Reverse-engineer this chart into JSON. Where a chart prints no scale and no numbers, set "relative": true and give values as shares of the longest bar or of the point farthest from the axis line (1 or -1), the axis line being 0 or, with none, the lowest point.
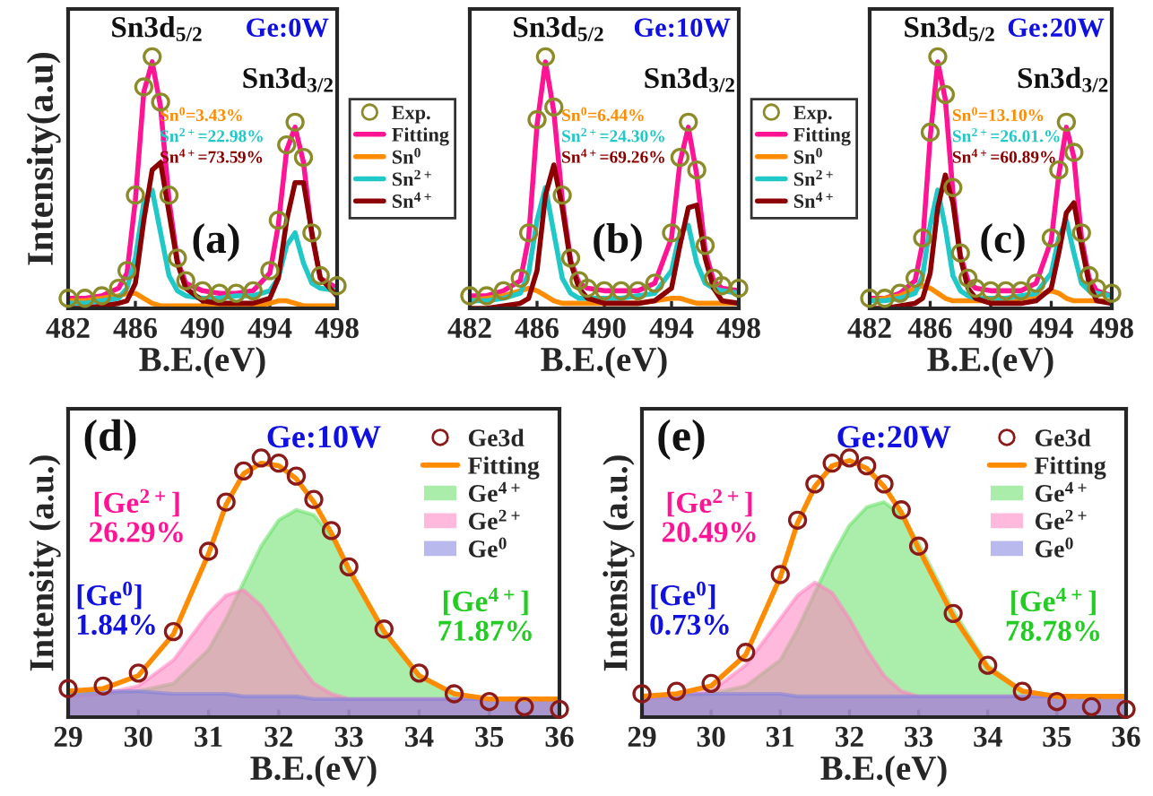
{
  "chart_data": [
    {
      "type": "line",
      "relative": true,
      "xlabel": "B.E.(eV)",
      "ylabel": "Intensity(a.u)",
      "xlim": [
        482,
        498
      ],
      "xticks": [
        482,
        486,
        490,
        494,
        498
      ],
      "legend": "right",
      "annotations": [
        "Sn3d$_{5/2}$",
        "Sn3d$_{3/2}$",
        "Ge:0W",
        "Sn$^{0}$=3.43%",
        "Sn$^{2+}$=22.98%",
        "Sn$^{4+}$=73.59%",
        "(a)"
      ],
      "x": [
        482,
        483,
        484,
        485,
        485.5,
        486,
        486.5,
        487,
        487.5,
        488,
        488.5,
        489,
        490,
        491,
        492,
        493,
        494,
        494.5,
        495,
        495.5,
        496,
        496.5,
        497,
        498
      ],
      "series": [
        {
          "name": "Exp.",
          "type": "scatter",
          "marker": "circle",
          "color": "#8b8b2a",
          "values": [
            0.04,
            0.04,
            0.05,
            0.08,
            0.15,
            0.45,
            0.88,
            1.0,
            0.82,
            0.45,
            0.2,
            0.11,
            0.07,
            0.06,
            0.06,
            0.07,
            0.15,
            0.35,
            0.65,
            0.74,
            0.6,
            0.3,
            0.13,
            0.09
          ]
        },
        {
          "name": "Fitting",
          "color": "#ff1493",
          "values": [
            0.04,
            0.04,
            0.05,
            0.08,
            0.14,
            0.43,
            0.86,
            0.98,
            0.8,
            0.43,
            0.19,
            0.1,
            0.07,
            0.06,
            0.06,
            0.07,
            0.14,
            0.33,
            0.63,
            0.72,
            0.58,
            0.29,
            0.12,
            0.08
          ]
        },
        {
          "name": "Sn$^{0}$",
          "color": "#ff8c00",
          "values": [
            0.03,
            0.03,
            0.04,
            0.05,
            0.06,
            0.06,
            0.04,
            0.02,
            0.01,
            0.01,
            0.01,
            0.01,
            0.01,
            0.01,
            0.01,
            0.01,
            0.02,
            0.03,
            0.03,
            0.02,
            0.01,
            0.01,
            0.01,
            0.01
          ]
        },
        {
          "name": "Sn$^{2+}$",
          "color": "#20c8c8",
          "values": [
            0.02,
            0.02,
            0.03,
            0.04,
            0.08,
            0.2,
            0.42,
            0.47,
            0.3,
            0.13,
            0.07,
            0.05,
            0.04,
            0.04,
            0.05,
            0.05,
            0.07,
            0.12,
            0.25,
            0.3,
            0.18,
            0.1,
            0.08,
            0.07
          ]
        },
        {
          "name": "Sn$^{4+}$",
          "color": "#8b0000",
          "values": [
            0.0,
            0.0,
            0.01,
            0.02,
            0.03,
            0.1,
            0.35,
            0.55,
            0.58,
            0.38,
            0.18,
            0.08,
            0.03,
            0.02,
            0.02,
            0.02,
            0.04,
            0.12,
            0.35,
            0.5,
            0.5,
            0.3,
            0.12,
            0.05
          ]
        }
      ]
    },
    {
      "type": "line",
      "relative": true,
      "xlabel": "B.E.(eV)",
      "xlim": [
        482,
        498
      ],
      "xticks": [
        482,
        486,
        490,
        494,
        498
      ],
      "legend": "right",
      "annotations": [
        "Sn3d$_{5/2}$",
        "Sn3d$_{3/2}$",
        "Ge:10W",
        "Sn$^{0}$=6.44%",
        "Sn$^{2+}$=24.30%",
        "Sn$^{4+}$=69.26%",
        "(b)"
      ],
      "x": [
        482,
        483,
        484,
        485,
        485.5,
        486,
        486.5,
        487,
        487.5,
        488,
        488.5,
        489,
        490,
        491,
        492,
        493,
        494,
        494.5,
        495,
        495.5,
        496,
        496.5,
        497,
        498
      ],
      "series": [
        {
          "name": "Exp.",
          "type": "scatter",
          "marker": "circle",
          "color": "#8b8b2a",
          "values": [
            0.05,
            0.05,
            0.07,
            0.12,
            0.3,
            0.75,
            1.0,
            0.8,
            0.45,
            0.2,
            0.11,
            0.08,
            0.07,
            0.07,
            0.07,
            0.1,
            0.3,
            0.6,
            0.74,
            0.55,
            0.25,
            0.12,
            0.09,
            0.08
          ]
        },
        {
          "name": "Fitting",
          "color": "#ff1493",
          "values": [
            0.05,
            0.05,
            0.07,
            0.11,
            0.28,
            0.73,
            0.98,
            0.78,
            0.43,
            0.19,
            0.1,
            0.08,
            0.07,
            0.07,
            0.07,
            0.1,
            0.28,
            0.58,
            0.72,
            0.53,
            0.23,
            0.11,
            0.08,
            0.07
          ]
        },
        {
          "name": "Sn$^{0}$",
          "color": "#ff8c00",
          "values": [
            0.03,
            0.04,
            0.05,
            0.07,
            0.08,
            0.07,
            0.05,
            0.03,
            0.02,
            0.02,
            0.02,
            0.02,
            0.02,
            0.02,
            0.02,
            0.03,
            0.04,
            0.04,
            0.03,
            0.02,
            0.02,
            0.02,
            0.02,
            0.02
          ]
        },
        {
          "name": "Sn$^{2+}$",
          "color": "#20c8c8",
          "values": [
            0.03,
            0.03,
            0.04,
            0.06,
            0.14,
            0.35,
            0.48,
            0.3,
            0.12,
            0.06,
            0.04,
            0.04,
            0.04,
            0.04,
            0.05,
            0.06,
            0.15,
            0.3,
            0.33,
            0.18,
            0.1,
            0.08,
            0.07,
            0.06
          ]
        },
        {
          "name": "Sn$^{4+}$",
          "color": "#8b0000",
          "values": [
            0.0,
            0.0,
            0.01,
            0.02,
            0.04,
            0.15,
            0.45,
            0.57,
            0.4,
            0.18,
            0.08,
            0.04,
            0.02,
            0.02,
            0.02,
            0.03,
            0.08,
            0.25,
            0.4,
            0.41,
            0.2,
            0.08,
            0.03,
            0.02
          ]
        }
      ]
    },
    {
      "type": "line",
      "relative": true,
      "xlabel": "B.E.(eV)",
      "xlim": [
        482,
        498
      ],
      "xticks": [
        482,
        486,
        490,
        494,
        498
      ],
      "annotations": [
        "Sn3d$_{5/2}$",
        "Sn3d$_{3/2}$",
        "Ge:20W",
        "Sn$^{0}$=13.10%",
        "Sn$^{2+}$=26.01.%",
        "Sn$^{4+}$=60.89%",
        "(c)"
      ],
      "x": [
        482,
        483,
        484,
        485,
        485.5,
        486,
        486.5,
        487,
        487.5,
        488,
        488.5,
        489,
        490,
        491,
        492,
        493,
        494,
        494.5,
        495,
        495.5,
        496,
        496.5,
        497,
        498
      ],
      "series": [
        {
          "type": "scatter",
          "marker": "circle",
          "color": "#8b8b2a",
          "values": [
            0.04,
            0.04,
            0.06,
            0.12,
            0.28,
            0.7,
            1.0,
            0.85,
            0.48,
            0.22,
            0.12,
            0.08,
            0.07,
            0.07,
            0.07,
            0.1,
            0.28,
            0.55,
            0.74,
            0.62,
            0.3,
            0.13,
            0.08,
            0.06
          ]
        },
        {
          "color": "#ff1493",
          "values": [
            0.04,
            0.04,
            0.06,
            0.11,
            0.26,
            0.68,
            0.98,
            0.83,
            0.46,
            0.21,
            0.11,
            0.08,
            0.07,
            0.07,
            0.07,
            0.1,
            0.27,
            0.53,
            0.72,
            0.6,
            0.28,
            0.12,
            0.07,
            0.05
          ]
        },
        {
          "color": "#ff8c00",
          "values": [
            0.03,
            0.04,
            0.05,
            0.08,
            0.09,
            0.08,
            0.06,
            0.04,
            0.03,
            0.03,
            0.03,
            0.03,
            0.03,
            0.03,
            0.04,
            0.05,
            0.07,
            0.06,
            0.04,
            0.03,
            0.03,
            0.03,
            0.03,
            0.03
          ]
        },
        {
          "color": "#20c8c8",
          "values": [
            0.03,
            0.03,
            0.04,
            0.06,
            0.13,
            0.33,
            0.47,
            0.32,
            0.13,
            0.07,
            0.05,
            0.04,
            0.04,
            0.04,
            0.05,
            0.06,
            0.14,
            0.28,
            0.35,
            0.22,
            0.1,
            0.07,
            0.06,
            0.05
          ]
        },
        {
          "color": "#8b0000",
          "values": [
            0.0,
            0.0,
            0.01,
            0.02,
            0.04,
            0.14,
            0.4,
            0.53,
            0.42,
            0.2,
            0.08,
            0.04,
            0.02,
            0.02,
            0.02,
            0.03,
            0.08,
            0.22,
            0.38,
            0.42,
            0.25,
            0.1,
            0.03,
            0.02
          ]
        }
      ]
    },
    {
      "type": "line",
      "relative": true,
      "xlabel": "B.E.(eV)",
      "ylabel": "Intensity (a.u.)",
      "xlim": [
        29,
        36
      ],
      "xticks": [
        29,
        30,
        31,
        32,
        33,
        34,
        35,
        36
      ],
      "legend": "top right",
      "annotations": [
        "(d)",
        "Ge:10W",
        "[Ge$^{2+}$]\n26.29%",
        "[Ge$^{0}$]\n1.84%",
        "[Ge$^{4+}$]\n71.87%"
      ],
      "x": [
        29,
        29.5,
        30,
        30.5,
        31,
        31.25,
        31.5,
        31.75,
        32,
        32.25,
        32.5,
        32.75,
        33,
        33.5,
        34,
        34.5,
        35,
        35.5,
        36
      ],
      "series": [
        {
          "name": "Ge3d",
          "type": "scatter",
          "marker": "circle",
          "color": "#8b1a1a",
          "values": [
            0.11,
            0.12,
            0.17,
            0.33,
            0.64,
            0.83,
            0.95,
            1.0,
            0.98,
            0.93,
            0.84,
            0.72,
            0.58,
            0.34,
            0.17,
            0.09,
            0.06,
            0.04,
            0.03
          ]
        },
        {
          "name": "Fitting",
          "color": "#ff8c00",
          "values": [
            0.1,
            0.11,
            0.16,
            0.32,
            0.63,
            0.82,
            0.94,
            0.98,
            0.97,
            0.92,
            0.83,
            0.71,
            0.57,
            0.33,
            0.16,
            0.09,
            0.07,
            0.07,
            0.07
          ]
        },
        {
          "name": "Ge$^{4+}$",
          "type": "area",
          "color": "#66e066",
          "values": [
            0.09,
            0.09,
            0.1,
            0.13,
            0.26,
            0.38,
            0.52,
            0.66,
            0.76,
            0.8,
            0.78,
            0.7,
            0.57,
            0.33,
            0.16,
            0.09,
            0.07,
            0.07,
            0.07
          ]
        },
        {
          "name": "Ge$^{2+}$",
          "type": "area",
          "color": "#ff80c0",
          "values": [
            0.08,
            0.09,
            0.12,
            0.22,
            0.4,
            0.47,
            0.49,
            0.43,
            0.33,
            0.22,
            0.13,
            0.09,
            0.07,
            0.07,
            0.07,
            0.07,
            0.07,
            0.07,
            0.07
          ]
        },
        {
          "name": "Ge$^{0}$",
          "type": "area",
          "color": "#8080e0",
          "values": [
            0.1,
            0.1,
            0.1,
            0.09,
            0.09,
            0.09,
            0.08,
            0.08,
            0.08,
            0.08,
            0.07,
            0.07,
            0.07,
            0.07,
            0.07,
            0.07,
            0.07,
            0.07,
            0.07
          ]
        }
      ]
    },
    {
      "type": "line",
      "relative": true,
      "xlabel": "B.E.(eV)",
      "ylabel": "Intensity (a.u.)",
      "xlim": [
        29,
        36
      ],
      "xticks": [
        29,
        30,
        31,
        32,
        33,
        34,
        35,
        36
      ],
      "legend": "top right",
      "annotations": [
        "(e)",
        "Ge:20W",
        "[Ge$^{2+}$]\n20.49%",
        "[Ge$^{0}$]\n0.73%",
        "[Ge$^{4+}$]\n78.78%"
      ],
      "x": [
        29,
        29.5,
        30,
        30.5,
        31,
        31.25,
        31.5,
        31.75,
        32,
        32.25,
        32.5,
        32.75,
        33,
        33.5,
        34,
        34.5,
        35,
        35.5,
        36
      ],
      "series": [
        {
          "name": "Ge3d",
          "type": "scatter",
          "marker": "circle",
          "color": "#8b1a1a",
          "values": [
            0.09,
            0.1,
            0.13,
            0.25,
            0.55,
            0.76,
            0.9,
            0.98,
            1.0,
            0.97,
            0.9,
            0.8,
            0.66,
            0.4,
            0.2,
            0.1,
            0.06,
            0.04,
            0.03
          ]
        },
        {
          "name": "Fitting",
          "color": "#ff8c00",
          "values": [
            0.08,
            0.09,
            0.12,
            0.24,
            0.54,
            0.75,
            0.89,
            0.97,
            0.99,
            0.96,
            0.89,
            0.79,
            0.65,
            0.39,
            0.19,
            0.1,
            0.08,
            0.08,
            0.08
          ]
        },
        {
          "name": "Ge$^{4+}$",
          "type": "area",
          "color": "#66e066",
          "values": [
            0.08,
            0.08,
            0.09,
            0.12,
            0.22,
            0.34,
            0.48,
            0.62,
            0.74,
            0.81,
            0.83,
            0.78,
            0.67,
            0.41,
            0.2,
            0.1,
            0.08,
            0.08,
            0.08
          ]
        },
        {
          "name": "Ge$^{2+}$",
          "type": "area",
          "color": "#ff80c0",
          "values": [
            0.07,
            0.08,
            0.1,
            0.2,
            0.38,
            0.47,
            0.52,
            0.48,
            0.38,
            0.26,
            0.16,
            0.1,
            0.08,
            0.08,
            0.08,
            0.08,
            0.08,
            0.08,
            0.08
          ]
        },
        {
          "name": "Ge$^{0}$",
          "type": "area",
          "color": "#8080e0",
          "values": [
            0.08,
            0.09,
            0.09,
            0.09,
            0.09,
            0.08,
            0.08,
            0.08,
            0.08,
            0.08,
            0.08,
            0.08,
            0.08,
            0.08,
            0.08,
            0.08,
            0.08,
            0.08,
            0.08
          ]
        }
      ]
    }
  ]
}
